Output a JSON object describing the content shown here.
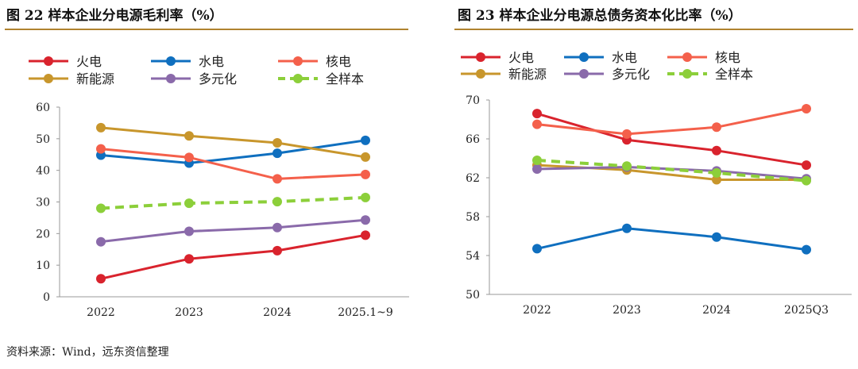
{
  "figure_left": {
    "title": "图 22 样本企业分电源毛利率（%）"
  },
  "figure_right": {
    "title": "图 23 样本企业分电源总债务资本化比率（%）"
  },
  "source_note": "资料来源：Wind，远东资信整理",
  "colors": {
    "火电": "#d9232d",
    "水电": "#0f6fbf",
    "核电": "#f4604b",
    "新能源": "#c8962c",
    "多元化": "#8a6aaa",
    "全样本": "#8ccf3a",
    "rule": "#b0832f"
  },
  "chart_data": [
    {
      "type": "line",
      "title": "样本企业分电源毛利率（%）",
      "categories": [
        "2022",
        "2023",
        "2024",
        "2025.1~9"
      ],
      "ylim": [
        0,
        60
      ],
      "yticks": [
        0,
        10,
        20,
        30,
        40,
        50,
        60
      ],
      "grid": false,
      "legend": "top",
      "series": [
        {
          "name": "火电",
          "values": [
            5.7,
            12.0,
            14.6,
            19.5
          ]
        },
        {
          "name": "水电",
          "values": [
            44.8,
            42.3,
            45.4,
            49.5
          ]
        },
        {
          "name": "核电",
          "values": [
            46.8,
            44.1,
            37.3,
            38.7
          ]
        },
        {
          "name": "新能源",
          "values": [
            53.5,
            50.9,
            48.7,
            44.2
          ]
        },
        {
          "name": "多元化",
          "values": [
            17.4,
            20.7,
            21.9,
            24.3
          ]
        },
        {
          "name": "全样本",
          "values": [
            28.0,
            29.6,
            30.1,
            31.4
          ],
          "dashed": true
        }
      ]
    },
    {
      "type": "line",
      "title": "样本企业分电源总债务资本化比率（%）",
      "categories": [
        "2022",
        "2023",
        "2024",
        "2025Q3"
      ],
      "ylim": [
        50,
        70
      ],
      "yticks": [
        50,
        54,
        58,
        62,
        66,
        70
      ],
      "grid": false,
      "legend": "top",
      "series": [
        {
          "name": "火电",
          "values": [
            68.6,
            65.9,
            64.8,
            63.3
          ]
        },
        {
          "name": "水电",
          "values": [
            54.7,
            56.8,
            55.9,
            54.6
          ]
        },
        {
          "name": "核电",
          "values": [
            67.5,
            66.5,
            67.2,
            69.1
          ]
        },
        {
          "name": "新能源",
          "values": [
            63.3,
            62.8,
            61.8,
            61.8
          ]
        },
        {
          "name": "多元化",
          "values": [
            62.9,
            63.1,
            62.7,
            61.9
          ]
        },
        {
          "name": "全样本",
          "values": [
            63.8,
            63.2,
            62.5,
            61.7
          ],
          "dashed": true
        }
      ]
    }
  ]
}
